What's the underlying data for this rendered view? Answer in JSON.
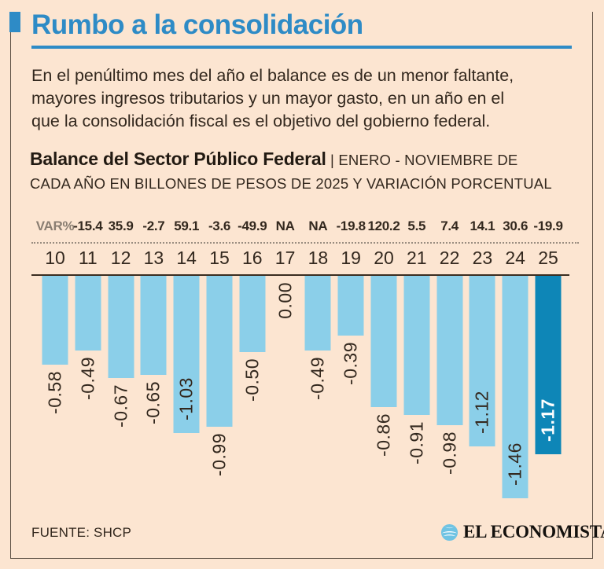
{
  "header": {
    "title": "Rumbo a la consolidación"
  },
  "intro": {
    "lines": [
      "En el penúltimo mes del año el balance es de un menor faltante,",
      "mayores ingresos tributarios y un mayor gasto, en un año en el",
      "que la consolidación fiscal es el objetivo del gobierno federal."
    ]
  },
  "chart_heading": {
    "bold": "Balance del Sector Público Federal",
    "rest_line1": " | ENERO - NOVIEMBRE DE",
    "line2": "CADA AÑO EN BILLONES DE PESOS DE 2025 Y VARIACIÓN PORCENTUAL"
  },
  "chart_data": {
    "type": "bar",
    "title": "Balance del Sector Público Federal",
    "subtitle": "ENERO - NOVIEMBRE DE CADA AÑO EN BILLONES DE PESOS DE 2025 Y VARIACIÓN PORCENTUAL",
    "categories": [
      "10",
      "11",
      "12",
      "13",
      "14",
      "15",
      "16",
      "17",
      "18",
      "19",
      "20",
      "21",
      "22",
      "23",
      "24",
      "25"
    ],
    "values": [
      -0.58,
      -0.49,
      -0.67,
      -0.65,
      -1.03,
      -0.99,
      -0.5,
      0.0,
      -0.49,
      -0.39,
      -0.86,
      -0.91,
      -0.98,
      -1.12,
      -1.46,
      -1.17
    ],
    "bar_labels": [
      "-0.58",
      "-0.49",
      "-0.67",
      "-0.65",
      "-1.03",
      "-0.99",
      "-0.50",
      "0.00",
      "-0.49",
      "-0.39",
      "-0.86",
      "-0.91",
      "-0.98",
      "-1.12",
      "-1.46",
      "-1.17"
    ],
    "var_label": "VAR%",
    "var_values": [
      "-15.4",
      "35.9",
      "-2.7",
      "59.1",
      "-3.6",
      "-49.9",
      "NA",
      "NA",
      "-19.8",
      "120.2",
      "5.5",
      "7.4",
      "14.1",
      "30.6",
      "-19.9"
    ],
    "highlight_index": 15,
    "ylim": [
      -1.6,
      0
    ],
    "grid": false,
    "legend": "none",
    "colors": {
      "bar": "#8bcfe9",
      "highlight_bar": "#0e86b7",
      "accent_blue": "#2e8bc6",
      "background": "#fce5d1",
      "text": "#33281e"
    }
  },
  "footer": {
    "source": "FUENTE: SHCP",
    "brand": "EL ECONOMISTA"
  }
}
